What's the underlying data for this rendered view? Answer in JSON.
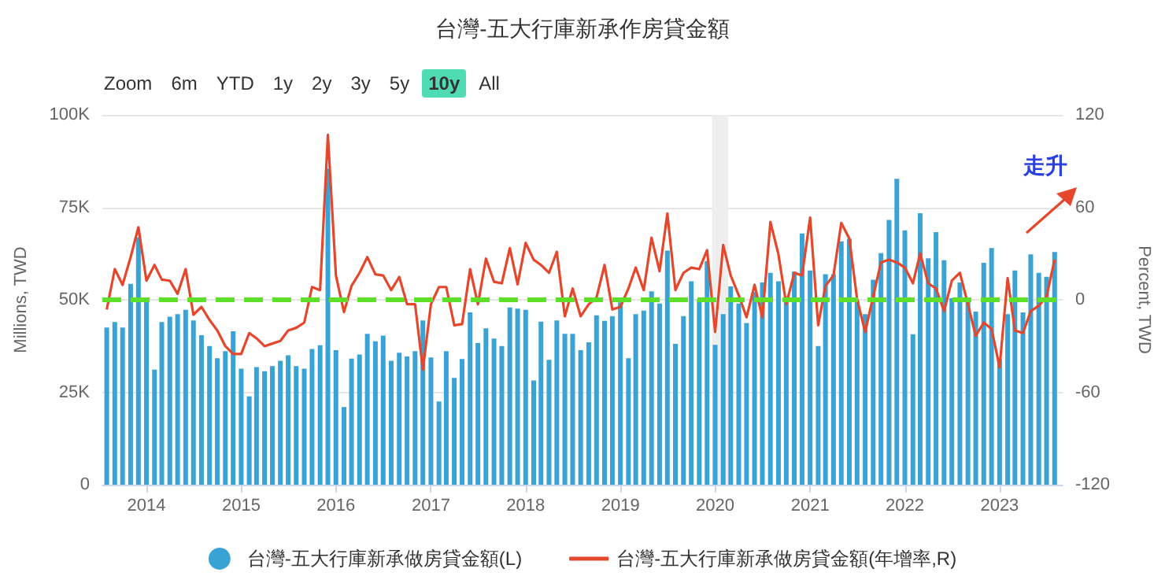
{
  "chart_data": {
    "type": "bar",
    "title": "台灣-五大行庫新承作房貸金額",
    "ylabel": "Millions, TWD",
    "y2label": "Percent, TWD",
    "annotations": [
      "Zoom",
      "6m",
      "YTD",
      "1y",
      "2y",
      "3y",
      "5y",
      "10y",
      "All",
      "走升"
    ],
    "x": [
      "2013-08",
      "2013-09",
      "2013-10",
      "2013-11",
      "2013-12",
      "2014-01",
      "2014-02",
      "2014-03",
      "2014-04",
      "2014-05",
      "2014-06",
      "2014-07",
      "2014-08",
      "2014-09",
      "2014-10",
      "2014-11",
      "2014-12",
      "2015-01",
      "2015-02",
      "2015-03",
      "2015-04",
      "2015-05",
      "2015-06",
      "2015-07",
      "2015-08",
      "2015-09",
      "2015-10",
      "2015-11",
      "2015-12",
      "2016-01",
      "2016-02",
      "2016-03",
      "2016-04",
      "2016-05",
      "2016-06",
      "2016-07",
      "2016-08",
      "2016-09",
      "2016-10",
      "2016-11",
      "2016-12",
      "2017-01",
      "2017-02",
      "2017-03",
      "2017-04",
      "2017-05",
      "2017-06",
      "2017-07",
      "2017-08",
      "2017-09",
      "2017-10",
      "2017-11",
      "2017-12",
      "2018-01",
      "2018-02",
      "2018-03",
      "2018-04",
      "2018-05",
      "2018-06",
      "2018-07",
      "2018-08",
      "2018-09",
      "2018-10",
      "2018-11",
      "2018-12",
      "2019-01",
      "2019-02",
      "2019-03",
      "2019-04",
      "2019-05",
      "2019-06",
      "2019-07",
      "2019-08",
      "2019-09",
      "2019-10",
      "2019-11",
      "2019-12",
      "2020-01",
      "2020-02",
      "2020-03",
      "2020-04",
      "2020-05",
      "2020-06",
      "2020-07",
      "2020-08",
      "2020-09",
      "2020-10",
      "2020-11",
      "2020-12",
      "2021-01",
      "2021-02",
      "2021-03",
      "2021-04",
      "2021-05",
      "2021-06",
      "2021-07",
      "2021-08",
      "2021-09",
      "2021-10",
      "2021-11",
      "2021-12",
      "2022-01",
      "2022-02",
      "2022-03",
      "2022-04",
      "2022-05",
      "2022-06",
      "2022-07",
      "2022-08",
      "2022-09",
      "2022-10",
      "2022-11",
      "2022-12",
      "2023-01",
      "2023-02",
      "2023-03",
      "2023-04",
      "2023-05",
      "2023-06",
      "2023-07",
      "2023-08"
    ],
    "series": [
      {
        "name": "台灣-五大行庫新承做房貸金額(L)",
        "color": "#3aa3d6",
        "values": [
          42500,
          44000,
          42500,
          54300,
          66900,
          50000,
          31100,
          44000,
          45400,
          46100,
          47300,
          44400,
          40400,
          37500,
          34200,
          36100,
          41500,
          31400,
          23900,
          31800,
          30700,
          32100,
          33500,
          35000,
          32100,
          31400,
          36700,
          37700,
          85500,
          36400,
          21000,
          34100,
          35200,
          40800,
          38800,
          40300,
          33500,
          35700,
          34700,
          36100,
          44400,
          34400,
          22500,
          36100,
          28900,
          34000,
          46600,
          38300,
          42300,
          39500,
          37500,
          47900,
          47600,
          47300,
          28200,
          44100,
          33800,
          44400,
          40800,
          40800,
          36400,
          38500,
          45800,
          44300,
          45600,
          49300,
          34200,
          46100,
          47100,
          52300,
          49000,
          63300,
          38100,
          45600,
          55000,
          50100,
          60500,
          37800,
          46100,
          53600,
          49000,
          43700,
          52100,
          54700,
          57300,
          55000,
          49700,
          57600,
          67900,
          57900,
          37500,
          56900,
          56900,
          65800,
          66500,
          49700,
          46100,
          55400,
          62600,
          71600,
          82700,
          68800,
          40700,
          73400,
          61200,
          68300,
          60700,
          50400,
          54700,
          50000,
          46800,
          60000,
          64000,
          34000,
          46100,
          57900,
          46600,
          62300,
          57300,
          56200,
          62900
        ]
      },
      {
        "name": "台灣-五大行庫新承做房貸金額(年增率,R)",
        "type": "line",
        "axis": "y2",
        "color": "#e5472c",
        "values": [
          -6.3,
          19.9,
          9.7,
          27.7,
          47.1,
          12.4,
          22.6,
          13.1,
          12.4,
          3.9,
          19.9,
          -9.7,
          -4.6,
          -13.1,
          -19.9,
          -30.1,
          -35.2,
          -35.2,
          -21.6,
          -25,
          -30.1,
          -28.4,
          -26.7,
          -19.9,
          -18.2,
          -14.8,
          8.3,
          6.3,
          107,
          15.8,
          -8,
          9,
          17.5,
          27.7,
          16.5,
          15.8,
          6.3,
          14.8,
          -2.9,
          -2.9,
          -45.4,
          -2.9,
          8.3,
          8.3,
          -16.5,
          -15.8,
          19.9,
          -2.9,
          26.7,
          11.7,
          10.7,
          33.5,
          10,
          36.9,
          26,
          22.6,
          17.5,
          31.1,
          -10.7,
          7.3,
          -10.7,
          -2.9,
          1.5,
          22.6,
          -6.3,
          -4.6,
          7.3,
          20.9,
          6.3,
          40.3,
          18.6,
          56,
          6.3,
          17.5,
          20.9,
          19.9,
          32.2,
          -20.9,
          35.6,
          15.8,
          2.9,
          -11.4,
          9.7,
          -11.4,
          50.5,
          29.4,
          -2.9,
          17.5,
          15.8,
          53.3,
          -16.5,
          9,
          15.8,
          49.9,
          39.7,
          0.5,
          -20.9,
          2.2,
          24.3,
          26,
          24.3,
          20.9,
          10.7,
          30.1,
          10.7,
          7.3,
          -7.3,
          12.4,
          17.5,
          -2.9,
          -23.3,
          -14.8,
          -18.9,
          -43.7,
          14.1,
          -19.9,
          -21.6,
          -7.3,
          -3.9,
          2.2,
          26
        ]
      }
    ],
    "xlim": [
      "2013-07-15",
      "2023-09-01"
    ],
    "xticks": [
      "2014",
      "2015",
      "2016",
      "2017",
      "2018",
      "2019",
      "2020",
      "2021",
      "2022",
      "2023"
    ],
    "ylim": [
      0,
      100000
    ],
    "yticks": [
      0,
      {
        "value": 25000,
        "label": "25K"
      },
      {
        "value": 50000,
        "label": "50K"
      },
      {
        "value": 75000,
        "label": "75K"
      },
      {
        "value": 100000,
        "label": "100K"
      }
    ],
    "y2lim": [
      -120,
      120
    ],
    "y2ticks": [
      -120,
      -60,
      0,
      60,
      120
    ],
    "ref_lines": [
      {
        "axis": "y2",
        "value": 0,
        "color": "#5ee02a",
        "line_style": "dashed"
      }
    ],
    "bands": [
      {
        "axis": "x",
        "from": "2019-12-20",
        "to": "2020-02-20",
        "color": "#eeeeee"
      }
    ],
    "grid": "y",
    "legend": "bottom",
    "marker": "none",
    "line_style": "solid"
  }
}
